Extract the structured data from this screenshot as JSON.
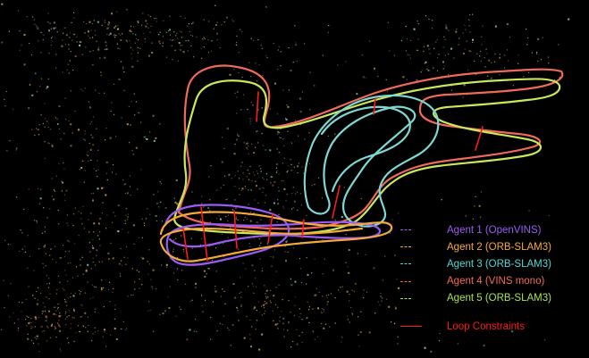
{
  "legend": {
    "agents": [
      {
        "label": "Agent 1 (OpenVINS)",
        "color": "#9b5cf5"
      },
      {
        "label": "Agent 2 (ORB-SLAM3)",
        "color": "#f5a93a"
      },
      {
        "label": "Agent 3 (ORB-SLAM3)",
        "color": "#4fd6d6"
      },
      {
        "label": "Agent 4 (VINS mono)",
        "color": "#f06a5a"
      },
      {
        "label": "Agent 5 (ORB-SLAM3)",
        "color": "#a6e34a"
      }
    ],
    "loop": {
      "label": "Loop Constraints",
      "color": "#ff1a1a"
    }
  },
  "colors": {
    "background": "#000000",
    "map_points_warm": "#d9a35a",
    "map_points_cool": "#8fe0c8"
  }
}
